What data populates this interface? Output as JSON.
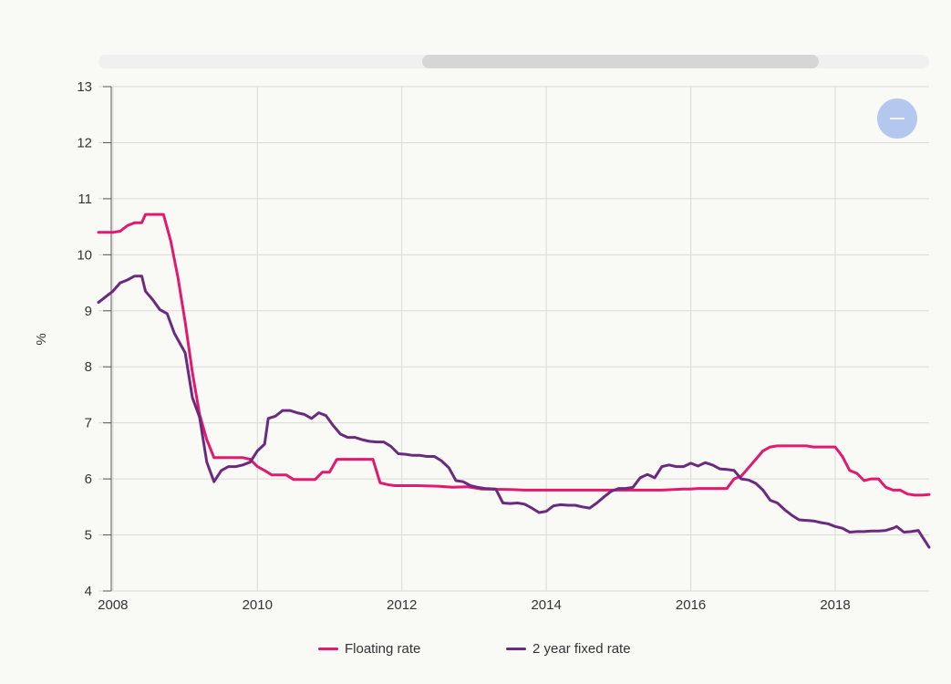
{
  "chart_data": {
    "type": "line",
    "ylabel": "%",
    "xlabel": "",
    "xlim": [
      2007.8,
      2019.3
    ],
    "ylim": [
      4,
      13
    ],
    "x_ticks": [
      "2008",
      "2010",
      "2012",
      "2014",
      "2016",
      "2018"
    ],
    "y_ticks": [
      "4",
      "5",
      "6",
      "7",
      "8",
      "9",
      "10",
      "11",
      "12",
      "13"
    ],
    "grid": true,
    "legend_position": "bottom",
    "series": [
      {
        "name": "Floating rate",
        "color": "#e3196e",
        "points": [
          [
            2007.8,
            10.4
          ],
          [
            2008.0,
            10.4
          ],
          [
            2008.1,
            10.42
          ],
          [
            2008.2,
            10.52
          ],
          [
            2008.3,
            10.57
          ],
          [
            2008.4,
            10.57
          ],
          [
            2008.45,
            10.72
          ],
          [
            2008.6,
            10.72
          ],
          [
            2008.65,
            10.72
          ],
          [
            2008.7,
            10.72
          ],
          [
            2008.8,
            10.25
          ],
          [
            2008.9,
            9.6
          ],
          [
            2009.0,
            8.8
          ],
          [
            2009.1,
            7.9
          ],
          [
            2009.2,
            7.15
          ],
          [
            2009.3,
            6.7
          ],
          [
            2009.4,
            6.38
          ],
          [
            2009.5,
            6.38
          ],
          [
            2009.6,
            6.38
          ],
          [
            2009.7,
            6.38
          ],
          [
            2009.8,
            6.38
          ],
          [
            2009.9,
            6.35
          ],
          [
            2010.0,
            6.22
          ],
          [
            2010.1,
            6.15
          ],
          [
            2010.2,
            6.07
          ],
          [
            2010.3,
            6.07
          ],
          [
            2010.4,
            6.07
          ],
          [
            2010.5,
            5.99
          ],
          [
            2010.6,
            5.99
          ],
          [
            2010.7,
            5.99
          ],
          [
            2010.8,
            5.99
          ],
          [
            2010.9,
            6.12
          ],
          [
            2011.0,
            6.12
          ],
          [
            2011.1,
            6.35
          ],
          [
            2011.2,
            6.35
          ],
          [
            2011.4,
            6.35
          ],
          [
            2011.5,
            6.35
          ],
          [
            2011.6,
            6.35
          ],
          [
            2011.7,
            5.93
          ],
          [
            2011.8,
            5.9
          ],
          [
            2011.9,
            5.88
          ],
          [
            2012.2,
            5.88
          ],
          [
            2012.5,
            5.87
          ],
          [
            2012.7,
            5.85
          ],
          [
            2012.9,
            5.86
          ],
          [
            2013.1,
            5.82
          ],
          [
            2013.5,
            5.81
          ],
          [
            2013.7,
            5.8
          ],
          [
            2014.0,
            5.8
          ],
          [
            2014.5,
            5.8
          ],
          [
            2015.0,
            5.8
          ],
          [
            2015.3,
            5.8
          ],
          [
            2015.6,
            5.8
          ],
          [
            2015.9,
            5.82
          ],
          [
            2016.0,
            5.82
          ],
          [
            2016.1,
            5.83
          ],
          [
            2016.2,
            5.83
          ],
          [
            2016.3,
            5.83
          ],
          [
            2016.4,
            5.83
          ],
          [
            2016.5,
            5.83
          ],
          [
            2016.6,
            6.0
          ],
          [
            2016.7,
            6.05
          ],
          [
            2016.8,
            6.2
          ],
          [
            2016.9,
            6.35
          ],
          [
            2017.0,
            6.5
          ],
          [
            2017.1,
            6.57
          ],
          [
            2017.2,
            6.59
          ],
          [
            2017.3,
            6.59
          ],
          [
            2017.5,
            6.59
          ],
          [
            2017.6,
            6.59
          ],
          [
            2017.7,
            6.57
          ],
          [
            2017.9,
            6.57
          ],
          [
            2018.0,
            6.57
          ],
          [
            2018.1,
            6.4
          ],
          [
            2018.2,
            6.15
          ],
          [
            2018.3,
            6.1
          ],
          [
            2018.4,
            5.97
          ],
          [
            2018.5,
            6.0
          ],
          [
            2018.6,
            6.0
          ],
          [
            2018.7,
            5.85
          ],
          [
            2018.8,
            5.8
          ],
          [
            2018.9,
            5.8
          ],
          [
            2019.0,
            5.73
          ],
          [
            2019.1,
            5.71
          ],
          [
            2019.2,
            5.71
          ],
          [
            2019.3,
            5.72
          ]
        ]
      },
      {
        "name": "2 year fixed rate",
        "color": "#6a2a7e",
        "points": [
          [
            2007.8,
            9.15
          ],
          [
            2007.9,
            9.25
          ],
          [
            2008.0,
            9.35
          ],
          [
            2008.1,
            9.5
          ],
          [
            2008.2,
            9.55
          ],
          [
            2008.3,
            9.62
          ],
          [
            2008.4,
            9.62
          ],
          [
            2008.45,
            9.35
          ],
          [
            2008.55,
            9.2
          ],
          [
            2008.65,
            9.02
          ],
          [
            2008.75,
            8.95
          ],
          [
            2008.85,
            8.6
          ],
          [
            2009.0,
            8.25
          ],
          [
            2009.1,
            7.45
          ],
          [
            2009.2,
            7.1
          ],
          [
            2009.3,
            6.3
          ],
          [
            2009.4,
            5.95
          ],
          [
            2009.5,
            6.15
          ],
          [
            2009.6,
            6.22
          ],
          [
            2009.7,
            6.22
          ],
          [
            2009.8,
            6.25
          ],
          [
            2009.9,
            6.3
          ],
          [
            2010.0,
            6.5
          ],
          [
            2010.1,
            6.62
          ],
          [
            2010.15,
            7.08
          ],
          [
            2010.25,
            7.12
          ],
          [
            2010.35,
            7.22
          ],
          [
            2010.45,
            7.22
          ],
          [
            2010.55,
            7.18
          ],
          [
            2010.65,
            7.15
          ],
          [
            2010.75,
            7.08
          ],
          [
            2010.85,
            7.18
          ],
          [
            2010.95,
            7.13
          ],
          [
            2011.05,
            6.95
          ],
          [
            2011.15,
            6.8
          ],
          [
            2011.25,
            6.74
          ],
          [
            2011.35,
            6.74
          ],
          [
            2011.45,
            6.7
          ],
          [
            2011.55,
            6.67
          ],
          [
            2011.65,
            6.66
          ],
          [
            2011.75,
            6.66
          ],
          [
            2011.85,
            6.58
          ],
          [
            2011.95,
            6.45
          ],
          [
            2012.05,
            6.44
          ],
          [
            2012.15,
            6.42
          ],
          [
            2012.25,
            6.42
          ],
          [
            2012.35,
            6.4
          ],
          [
            2012.45,
            6.4
          ],
          [
            2012.55,
            6.32
          ],
          [
            2012.65,
            6.2
          ],
          [
            2012.75,
            5.97
          ],
          [
            2012.85,
            5.95
          ],
          [
            2012.95,
            5.88
          ],
          [
            2013.05,
            5.85
          ],
          [
            2013.15,
            5.83
          ],
          [
            2013.3,
            5.82
          ],
          [
            2013.4,
            5.57
          ],
          [
            2013.5,
            5.56
          ],
          [
            2013.6,
            5.57
          ],
          [
            2013.7,
            5.55
          ],
          [
            2013.8,
            5.48
          ],
          [
            2013.9,
            5.4
          ],
          [
            2014.0,
            5.42
          ],
          [
            2014.1,
            5.52
          ],
          [
            2014.2,
            5.54
          ],
          [
            2014.3,
            5.53
          ],
          [
            2014.4,
            5.53
          ],
          [
            2014.5,
            5.5
          ],
          [
            2014.6,
            5.48
          ],
          [
            2014.7,
            5.57
          ],
          [
            2014.8,
            5.68
          ],
          [
            2014.9,
            5.78
          ],
          [
            2015.0,
            5.83
          ],
          [
            2015.1,
            5.83
          ],
          [
            2015.2,
            5.85
          ],
          [
            2015.3,
            6.02
          ],
          [
            2015.4,
            6.08
          ],
          [
            2015.5,
            6.02
          ],
          [
            2015.6,
            6.22
          ],
          [
            2015.7,
            6.25
          ],
          [
            2015.8,
            6.22
          ],
          [
            2015.9,
            6.22
          ],
          [
            2016.0,
            6.28
          ],
          [
            2016.1,
            6.23
          ],
          [
            2016.2,
            6.29
          ],
          [
            2016.3,
            6.25
          ],
          [
            2016.4,
            6.18
          ],
          [
            2016.5,
            6.17
          ],
          [
            2016.6,
            6.15
          ],
          [
            2016.7,
            6.0
          ],
          [
            2016.8,
            5.98
          ],
          [
            2016.9,
            5.92
          ],
          [
            2017.0,
            5.8
          ],
          [
            2017.1,
            5.62
          ],
          [
            2017.2,
            5.57
          ],
          [
            2017.3,
            5.45
          ],
          [
            2017.4,
            5.35
          ],
          [
            2017.5,
            5.27
          ],
          [
            2017.6,
            5.26
          ],
          [
            2017.7,
            5.25
          ],
          [
            2017.8,
            5.22
          ],
          [
            2017.9,
            5.2
          ],
          [
            2018.0,
            5.15
          ],
          [
            2018.1,
            5.12
          ],
          [
            2018.2,
            5.05
          ],
          [
            2018.3,
            5.06
          ],
          [
            2018.4,
            5.06
          ],
          [
            2018.5,
            5.07
          ],
          [
            2018.6,
            5.07
          ],
          [
            2018.7,
            5.08
          ],
          [
            2018.8,
            5.12
          ],
          [
            2018.85,
            5.15
          ],
          [
            2018.95,
            5.05
          ],
          [
            2019.05,
            5.06
          ],
          [
            2019.15,
            5.08
          ],
          [
            2019.3,
            4.78
          ]
        ]
      }
    ]
  },
  "scrollbar": {
    "label": ""
  },
  "zoom_button": {
    "icon": "minus-icon"
  }
}
